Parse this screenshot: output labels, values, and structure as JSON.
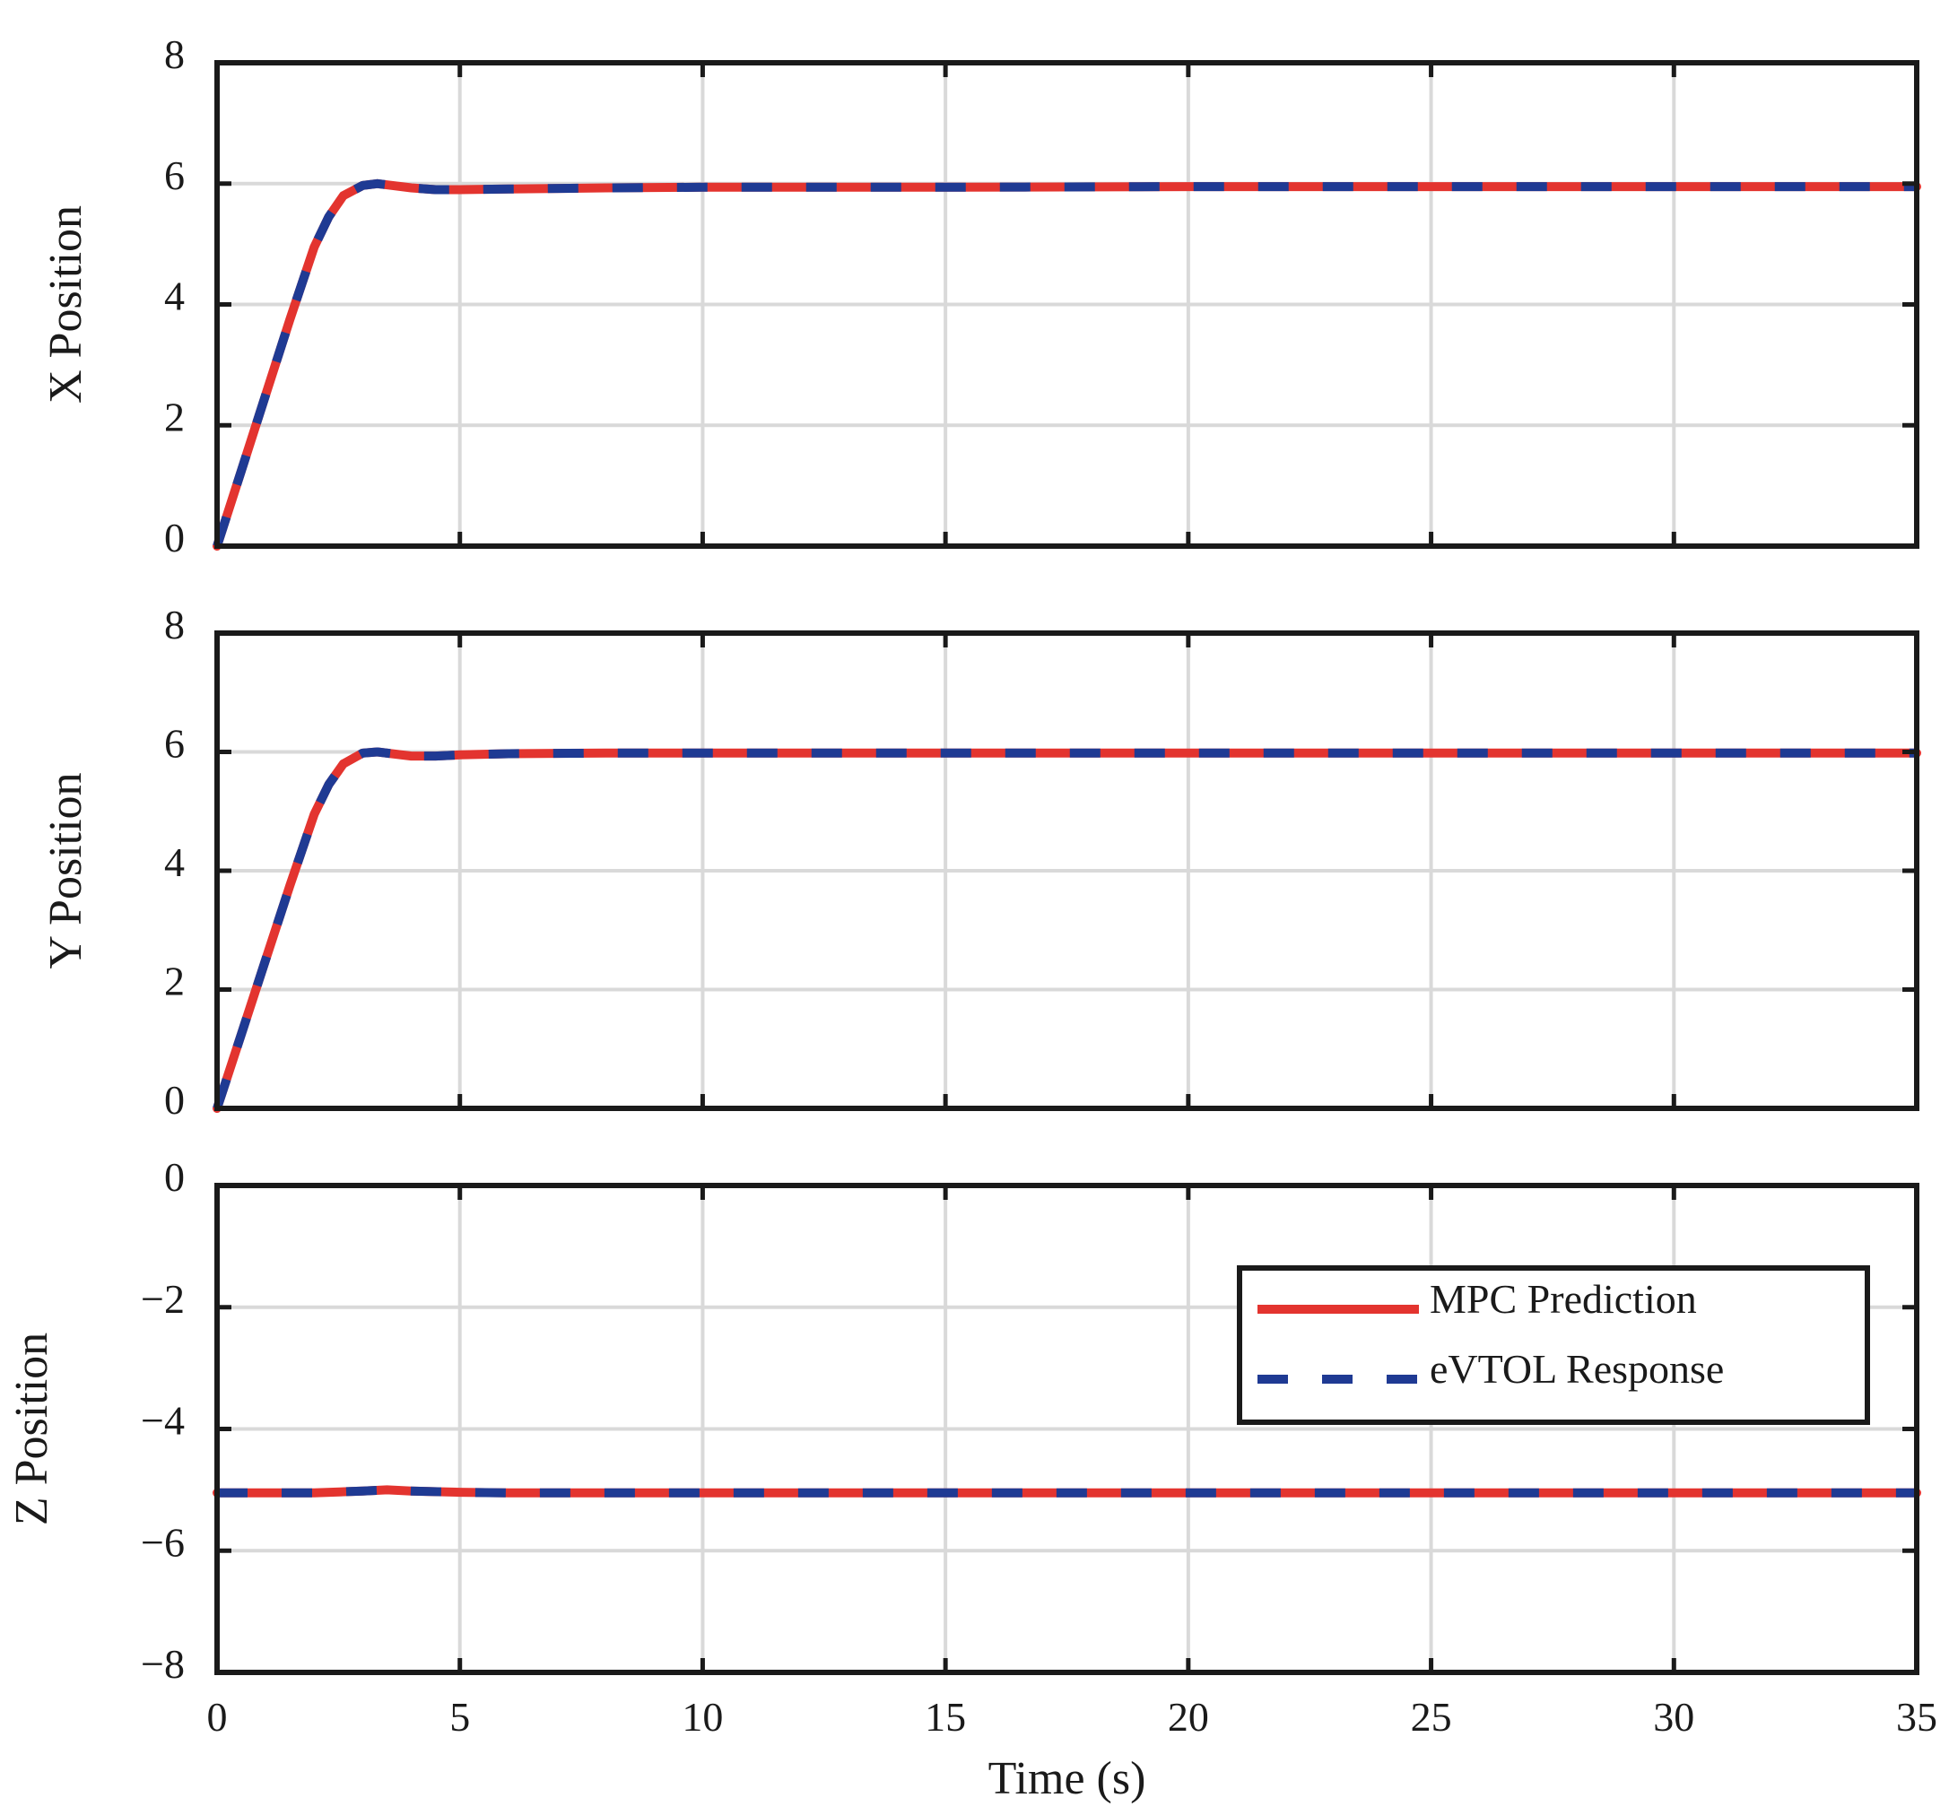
{
  "chart_data": {
    "type": "line",
    "layout": "3 vertically stacked subplots sharing x axis",
    "xlabel": "Time (s)",
    "xlim": [
      0,
      35
    ],
    "xticks": [
      "0",
      "5",
      "10",
      "15",
      "20",
      "25",
      "30",
      "35"
    ],
    "grid": true,
    "colors": {
      "mpc": "#e3342f",
      "evtol": "#1f3a93",
      "grid": "#d9d9d9",
      "axes": "#1a1a1a"
    },
    "legend": {
      "placement": "inside lower subplot, upper-right",
      "entries": [
        {
          "label": "MPC Prediction",
          "style": "solid",
          "color": "#e3342f"
        },
        {
          "label": "eVTOL Response",
          "style": "dashed",
          "color": "#1f3a93"
        }
      ]
    },
    "subplots": [
      {
        "ylabel": "X Position",
        "ylim": [
          0,
          8
        ],
        "yticks": [
          "0",
          "2",
          "4",
          "6",
          "8"
        ],
        "series": [
          {
            "name": "MPC Prediction",
            "x": [
              0,
              0.5,
              1.0,
              1.5,
              2.0,
              2.3,
              2.6,
              3.0,
              3.3,
              3.6,
              4.0,
              4.5,
              5.0,
              6.0,
              8.0,
              10.0,
              15.0,
              20.0,
              25.0,
              30.0,
              35.0
            ],
            "y": [
              0,
              1.25,
              2.5,
              3.75,
              4.95,
              5.45,
              5.8,
              5.97,
              6.0,
              5.97,
              5.93,
              5.9,
              5.9,
              5.91,
              5.93,
              5.94,
              5.94,
              5.95,
              5.95,
              5.95,
              5.95
            ]
          },
          {
            "name": "eVTOL Response",
            "x": [
              0,
              0.5,
              1.0,
              1.5,
              2.0,
              2.3,
              2.6,
              3.0,
              3.3,
              3.6,
              4.0,
              4.5,
              5.0,
              6.0,
              8.0,
              10.0,
              15.0,
              20.0,
              25.0,
              30.0,
              35.0
            ],
            "y": [
              0,
              1.25,
              2.5,
              3.75,
              4.95,
              5.45,
              5.8,
              5.97,
              6.0,
              5.97,
              5.93,
              5.9,
              5.9,
              5.91,
              5.93,
              5.94,
              5.94,
              5.95,
              5.95,
              5.95,
              5.95
            ]
          }
        ]
      },
      {
        "ylabel": "Y Position",
        "ylim": [
          0,
          8
        ],
        "yticks": [
          "0",
          "2",
          "4",
          "6",
          "8"
        ],
        "series": [
          {
            "name": "MPC Prediction",
            "x": [
              0,
              0.5,
              1.0,
              1.5,
              2.0,
              2.3,
              2.6,
              3.0,
              3.3,
              3.6,
              4.0,
              4.5,
              5.0,
              6.0,
              8.0,
              10.0,
              15.0,
              20.0,
              25.0,
              30.0,
              35.0
            ],
            "y": [
              0,
              1.25,
              2.5,
              3.75,
              4.95,
              5.45,
              5.8,
              5.98,
              6.0,
              5.97,
              5.93,
              5.93,
              5.95,
              5.97,
              5.98,
              5.98,
              5.98,
              5.98,
              5.98,
              5.98,
              5.98
            ]
          },
          {
            "name": "eVTOL Response",
            "x": [
              0,
              0.5,
              1.0,
              1.5,
              2.0,
              2.3,
              2.6,
              3.0,
              3.3,
              3.6,
              4.0,
              4.5,
              5.0,
              6.0,
              8.0,
              10.0,
              15.0,
              20.0,
              25.0,
              30.0,
              35.0
            ],
            "y": [
              0,
              1.25,
              2.5,
              3.75,
              4.95,
              5.45,
              5.8,
              5.98,
              6.0,
              5.97,
              5.93,
              5.93,
              5.95,
              5.97,
              5.98,
              5.98,
              5.98,
              5.98,
              5.98,
              5.98,
              5.98
            ]
          }
        ]
      },
      {
        "ylabel": "Z Position",
        "ylim": [
          -8,
          0
        ],
        "yticks": [
          "−8",
          "−6",
          "−4",
          "−2",
          "0"
        ],
        "series": [
          {
            "name": "MPC Prediction",
            "x": [
              0,
              1,
              2,
              3,
              3.5,
              4,
              5,
              6,
              10,
              15,
              20,
              25,
              30,
              35
            ],
            "y": [
              -5.05,
              -5.05,
              -5.05,
              -5.02,
              -5.0,
              -5.02,
              -5.04,
              -5.05,
              -5.05,
              -5.05,
              -5.05,
              -5.05,
              -5.05,
              -5.05
            ]
          },
          {
            "name": "eVTOL Response",
            "x": [
              0,
              1,
              2,
              3,
              3.5,
              4,
              5,
              6,
              10,
              15,
              20,
              25,
              30,
              35
            ],
            "y": [
              -5.05,
              -5.05,
              -5.05,
              -5.02,
              -5.0,
              -5.02,
              -5.04,
              -5.05,
              -5.05,
              -5.05,
              -5.05,
              -5.05,
              -5.05,
              -5.05
            ]
          }
        ]
      }
    ]
  }
}
